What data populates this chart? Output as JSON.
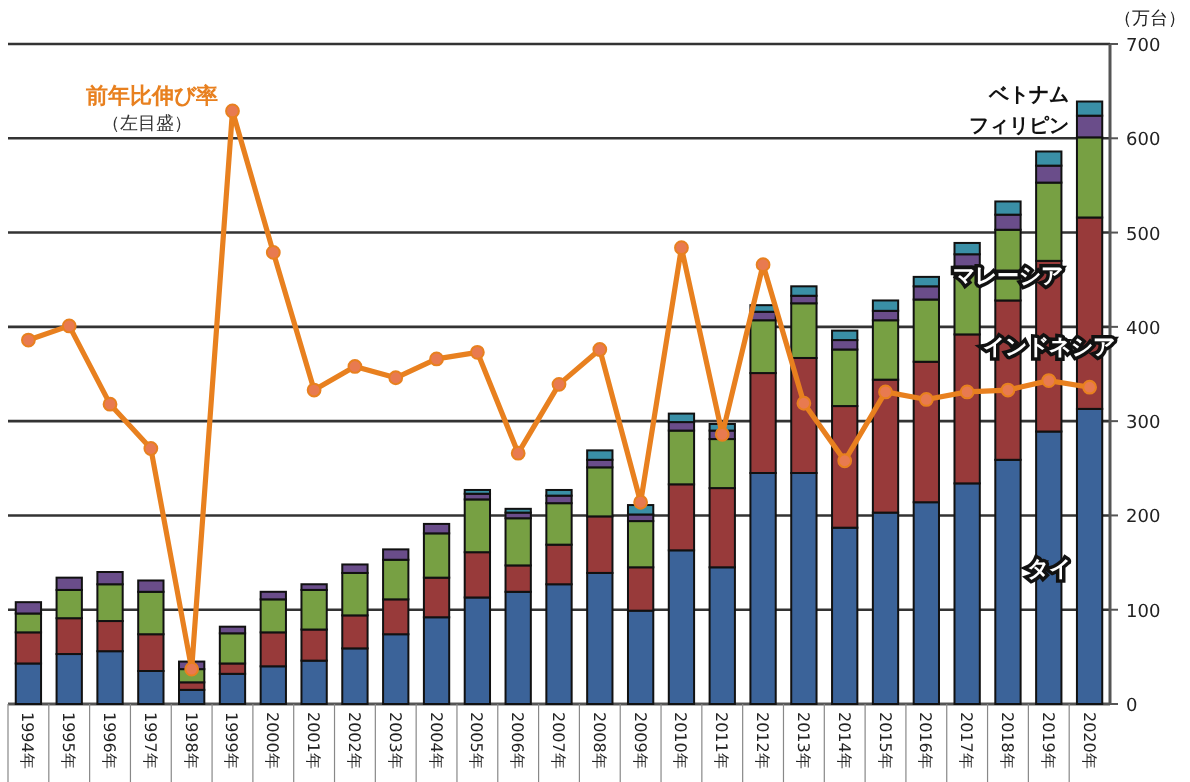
{
  "chart_data": {
    "type": "bar",
    "stacked": true,
    "ylabel": "（万台）",
    "ylim": [
      0,
      700
    ],
    "yticks": [
      0,
      100,
      200,
      300,
      400,
      500,
      600,
      700
    ],
    "grid": "y",
    "categories": [
      "1994年",
      "1995年",
      "1996年",
      "1997年",
      "1998年",
      "1999年",
      "2000年",
      "2001年",
      "2002年",
      "2003年",
      "2004年",
      "2005年",
      "2006年",
      "2007年",
      "2008年",
      "2009年",
      "2010年",
      "2011年",
      "2012年",
      "2013年",
      "2014年",
      "2015年",
      "2016年",
      "2017年",
      "2018年",
      "2019年",
      "2020年"
    ],
    "series": [
      {
        "name": "タイ",
        "color": "#3b6399",
        "values": [
          43,
          53,
          56,
          35,
          15,
          32,
          40,
          46,
          59,
          74,
          92,
          113,
          119,
          127,
          139,
          99,
          163,
          145,
          245,
          245,
          187,
          203,
          214,
          234,
          259,
          289,
          313
        ]
      },
      {
        "name": "インドネシア",
        "color": "#983a3a",
        "values": [
          33,
          38,
          32,
          39,
          8,
          11,
          36,
          33,
          35,
          37,
          42,
          48,
          28,
          42,
          60,
          46,
          70,
          84,
          106,
          122,
          129,
          141,
          149,
          158,
          169,
          181,
          203
        ]
      },
      {
        "name": "マレーシア",
        "color": "#77a043",
        "values": [
          20,
          30,
          39,
          45,
          14,
          32,
          35,
          42,
          45,
          42,
          47,
          56,
          50,
          44,
          52,
          49,
          57,
          52,
          56,
          58,
          60,
          63,
          66,
          72,
          75,
          83,
          85
        ]
      },
      {
        "name": "フィリピン",
        "color": "#6a4d8a",
        "values": [
          12,
          13,
          13,
          12,
          8,
          7,
          8,
          6,
          9,
          11,
          10,
          6,
          6,
          8,
          8,
          7,
          9,
          9,
          9,
          8,
          10,
          10,
          14,
          13,
          16,
          18,
          23
        ]
      },
      {
        "name": "ベトナム",
        "color": "#3a8fa6",
        "values": [
          0,
          0,
          0,
          0,
          0,
          0,
          0,
          0,
          0,
          0,
          0,
          4,
          4,
          6,
          10,
          10,
          9,
          7,
          7,
          10,
          10,
          11,
          10,
          12,
          14,
          15,
          15
        ]
      },
      {
        "name": "前年比伸び率",
        "type": "line",
        "color": "#e8801f",
        "marker": "circle",
        "values": [
          386,
          401,
          318,
          271,
          37,
          629,
          479,
          333,
          358,
          346,
          366,
          373,
          266,
          339,
          376,
          214,
          484,
          286,
          466,
          319,
          258,
          331,
          323,
          331,
          333,
          343,
          336
        ]
      }
    ],
    "annotations": [
      "（左目盛）"
    ]
  }
}
